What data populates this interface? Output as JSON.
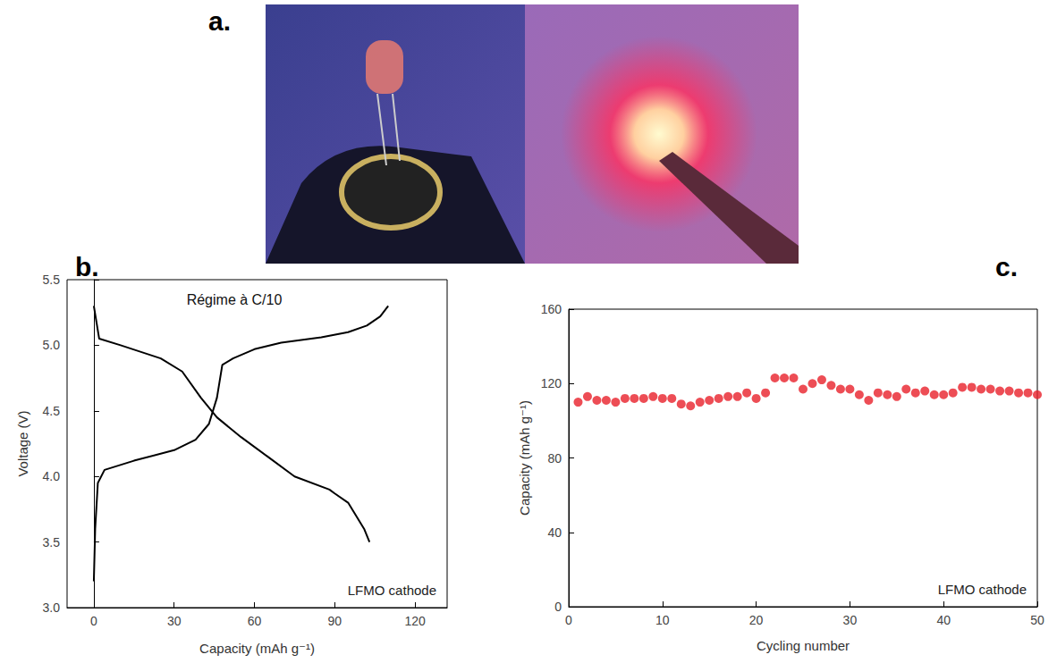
{
  "photo_panel": {
    "panel": "a."
  },
  "chart_data": [
    {
      "panel": "b.",
      "type": "line",
      "annotations": [
        "Régime à C/10",
        "LFMO cathode"
      ],
      "x_label": "Capacity (mAh g⁻¹)",
      "y_label": "Voltage (V)",
      "series": [
        {
          "color": "#000000",
          "x": [
            0,
            0.5,
            1.5,
            4,
            15,
            30,
            38,
            43,
            46,
            48,
            52,
            60,
            70,
            85,
            95,
            102,
            107,
            110
          ],
          "values": [
            3.2,
            3.6,
            3.95,
            4.05,
            4.12,
            4.2,
            4.28,
            4.4,
            4.6,
            4.85,
            4.9,
            4.97,
            5.02,
            5.06,
            5.1,
            5.15,
            5.22,
            5.3
          ]
        },
        {
          "color": "#000000",
          "x": [
            0,
            2,
            10,
            25,
            33,
            40,
            46,
            55,
            65,
            75,
            88,
            90,
            95,
            101,
            103
          ],
          "values": [
            5.3,
            5.05,
            5.0,
            4.9,
            4.8,
            4.6,
            4.45,
            4.3,
            4.15,
            4.0,
            3.9,
            3.87,
            3.8,
            3.6,
            3.5
          ]
        }
      ],
      "xlim": [
        -10,
        132
      ],
      "xticks": [
        0,
        30,
        60,
        90,
        120
      ],
      "ylim": [
        3.0,
        5.5
      ],
      "yticks": [
        {
          "value": 3,
          "label": "3.0"
        },
        3.5,
        {
          "value": 4,
          "label": "4.0"
        },
        4.5,
        {
          "value": 5,
          "label": "5.0"
        },
        5.5
      ],
      "grid": false
    },
    {
      "panel": "c.",
      "type": "scatter",
      "annotations": [
        "LFMO cathode"
      ],
      "x_label": "Cycling number",
      "y_label": "Capacity (mAh g⁻¹)",
      "x": [
        1,
        2,
        3,
        4,
        5,
        6,
        7,
        8,
        9,
        10,
        11,
        12,
        13,
        14,
        15,
        16,
        17,
        18,
        19,
        20,
        21,
        22,
        23,
        24,
        25,
        26,
        27,
        28,
        29,
        30,
        31,
        32,
        33,
        34,
        35,
        36,
        37,
        38,
        39,
        40,
        41,
        42,
        43,
        44,
        45,
        46,
        47,
        48,
        49,
        50
      ],
      "series": [
        {
          "color": "#e8202a",
          "marker": "circle",
          "values": [
            110,
            113,
            111,
            111,
            110,
            112,
            112,
            112,
            113,
            112,
            112,
            109,
            108,
            110,
            111,
            112,
            113,
            113,
            115,
            112,
            115,
            123,
            123,
            123,
            117,
            120,
            122,
            119,
            117,
            117,
            114,
            111,
            115,
            114,
            113,
            117,
            115,
            116,
            114,
            114,
            115,
            118,
            118,
            117,
            117,
            116,
            116,
            115,
            115,
            114
          ]
        }
      ],
      "xlim": [
        0,
        50
      ],
      "xticks": [
        0,
        10,
        20,
        30,
        40,
        50
      ],
      "ylim": [
        0,
        160
      ],
      "yticks": [
        0,
        40,
        80,
        120,
        160
      ],
      "grid": false
    }
  ]
}
